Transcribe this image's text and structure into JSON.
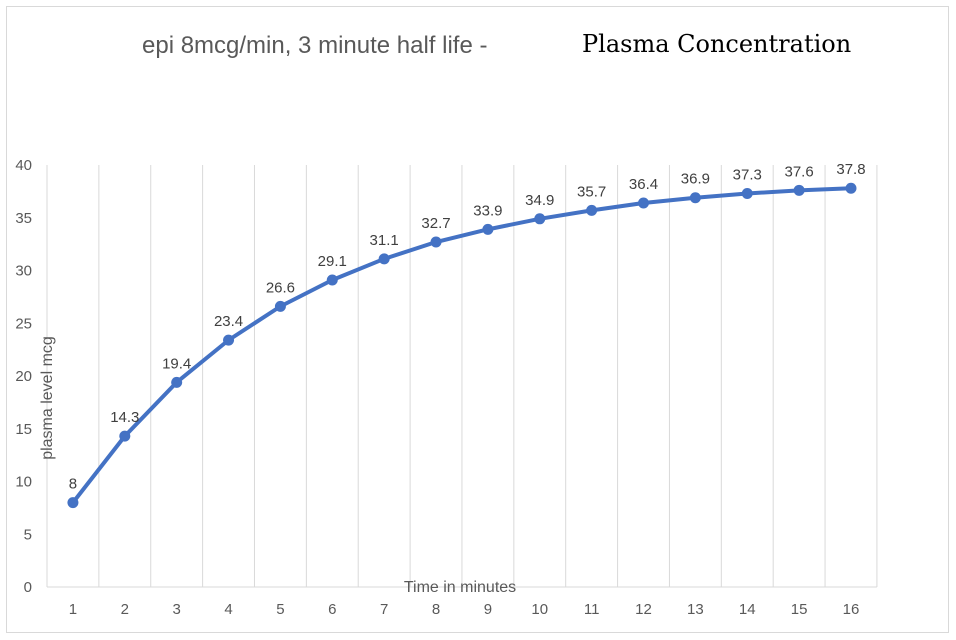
{
  "chart_data": {
    "type": "line",
    "title": "epi 8mcg/min, 3 minute half life -",
    "subtitle": "Plasma Concentration",
    "xlabel": "Time in minutes",
    "ylabel": "plasma  level mcg",
    "categories": [
      "1",
      "2",
      "3",
      "4",
      "5",
      "6",
      "7",
      "8",
      "9",
      "10",
      "11",
      "12",
      "13",
      "14",
      "15",
      "16"
    ],
    "series": [
      {
        "values": [
          8,
          14.3,
          19.4,
          23.4,
          26.6,
          29.1,
          31.1,
          32.7,
          33.9,
          34.9,
          35.7,
          36.4,
          36.9,
          37.3,
          37.6,
          37.8
        ]
      }
    ],
    "data_labels": [
      "8",
      "14.3",
      "19.4",
      "23.4",
      "26.6",
      "29.1",
      "31.1",
      "32.7",
      "33.9",
      "34.9",
      "35.7",
      "36.4",
      "36.9",
      "37.3",
      "37.6",
      "37.8"
    ],
    "yticks": [
      "0",
      "5",
      "10",
      "15",
      "20",
      "25",
      "30",
      "35",
      "40"
    ],
    "ylim": [
      0,
      40
    ],
    "grid": "vertical",
    "legend": "none",
    "colors": {
      "line": "#4472c4",
      "grid": "#d9d9d9",
      "text": "#595959"
    }
  }
}
